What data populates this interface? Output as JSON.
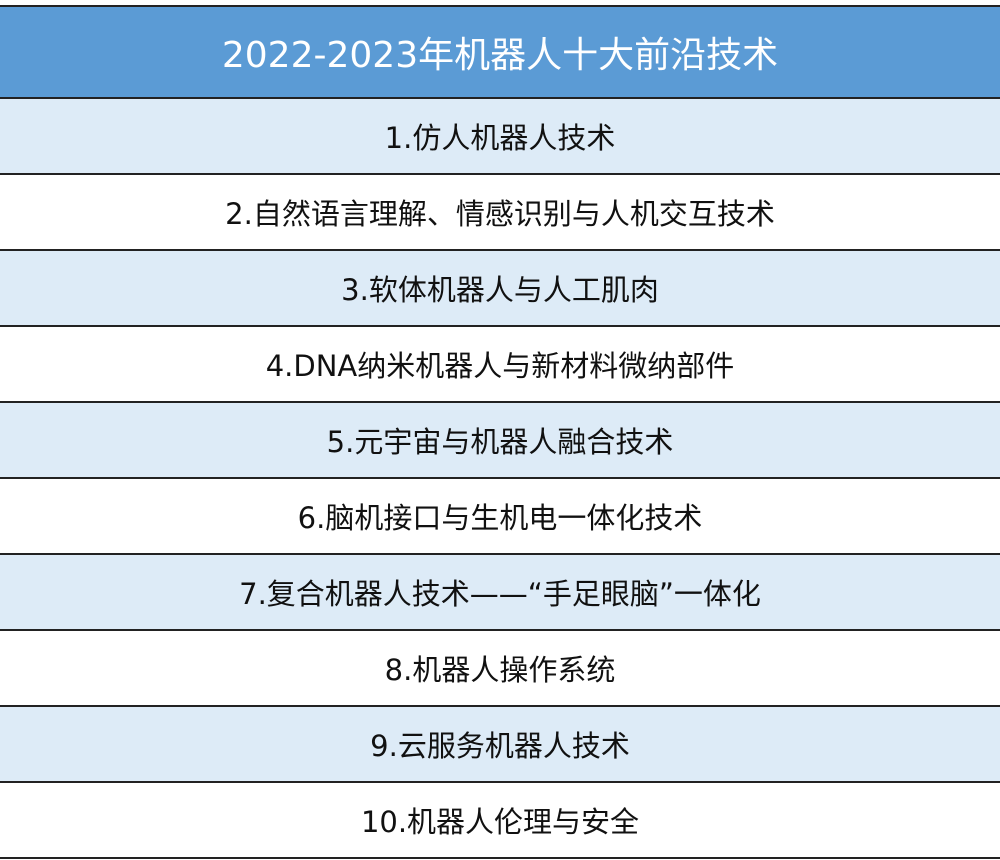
{
  "title": "2022-2023年机器人十大前沿技术",
  "colors": {
    "header_bg": "#5b9bd5",
    "alt_row_bg": "#ddebf7"
  },
  "items": [
    "1.仿人机器人技术",
    "2.自然语言理解、情感识别与人机交互技术",
    "3.软体机器人与人工肌肉",
    "4.DNA纳米机器人与新材料微纳部件",
    "5.元宇宙与机器人融合技术",
    "6.脑机接口与生机电一体化技术",
    "7.复合机器人技术——“手足眼脑”一体化",
    "8.机器人操作系统",
    "9.云服务机器人技术",
    "10.机器人伦理与安全"
  ]
}
